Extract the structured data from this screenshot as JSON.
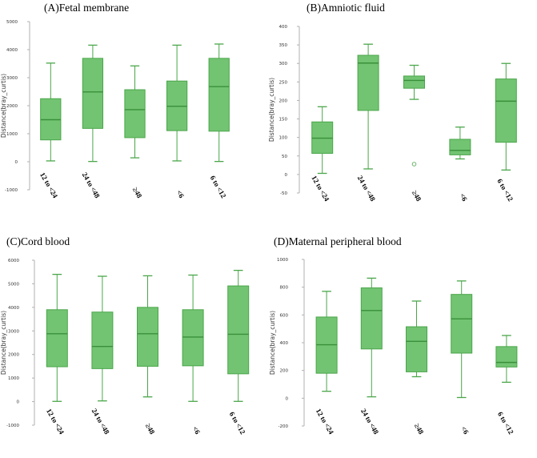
{
  "colors": {
    "box_fill": "#72c472",
    "box_stroke": "#4aa64a",
    "axis": "#b0b0b0",
    "outlier": "#5aab5a"
  },
  "chart_data": [
    {
      "type": "box",
      "title": "(A)Fetal membrane",
      "ylabel": "Distance(bray_curtis)",
      "xlabel": "",
      "ylim": [
        -1000,
        5000
      ],
      "yticks": [
        -1000,
        0,
        1000,
        2000,
        3000,
        4000,
        5000
      ],
      "categories": [
        "12 to <24",
        "24 to <48",
        "≥48",
        "<6",
        "6 to <12"
      ],
      "boxes": [
        {
          "min": 30,
          "q1": 780,
          "median": 1500,
          "q3": 2250,
          "max": 3520
        },
        {
          "min": 10,
          "q1": 1190,
          "median": 2490,
          "q3": 3690,
          "max": 4160
        },
        {
          "min": 140,
          "q1": 860,
          "median": 1860,
          "q3": 2570,
          "max": 3420
        },
        {
          "min": 30,
          "q1": 1110,
          "median": 1980,
          "q3": 2880,
          "max": 4160
        },
        {
          "min": 10,
          "q1": 1090,
          "median": 2680,
          "q3": 3690,
          "max": 4200
        }
      ],
      "outliers": [
        [],
        [],
        [],
        [],
        []
      ]
    },
    {
      "type": "box",
      "title": "(B)Amniotic fluid",
      "ylabel": "Distance(bray_curtis)",
      "xlabel": "",
      "ylim": [
        -50,
        400
      ],
      "yticks": [
        -50,
        0,
        50,
        100,
        150,
        200,
        250,
        300,
        350,
        400
      ],
      "categories": [
        "12 to <24",
        "24 to <48",
        "≥48",
        "<6",
        "6 to <12"
      ],
      "boxes": [
        {
          "min": 3,
          "q1": 57,
          "median": 98,
          "q3": 142,
          "max": 183
        },
        {
          "min": 15,
          "q1": 173,
          "median": 301,
          "q3": 322,
          "max": 352
        },
        {
          "min": 203,
          "q1": 233,
          "median": 254,
          "q3": 266,
          "max": 295
        },
        {
          "min": 42,
          "q1": 53,
          "median": 65,
          "q3": 95,
          "max": 128
        },
        {
          "min": 12,
          "q1": 87,
          "median": 198,
          "q3": 258,
          "max": 300
        }
      ],
      "outliers": [
        [],
        [],
        [
          28
        ],
        [],
        []
      ]
    },
    {
      "type": "box",
      "title": "(C)Cord blood",
      "ylabel": "Distance(bray_curtis)",
      "xlabel": "",
      "ylim": [
        -1000,
        6000
      ],
      "yticks": [
        -1000,
        0,
        1000,
        2000,
        3000,
        4000,
        5000,
        6000
      ],
      "categories": [
        "12 to <24",
        "24 to <48",
        "≥48",
        "<6",
        "6 to <12"
      ],
      "boxes": [
        {
          "min": 10,
          "q1": 1480,
          "median": 2880,
          "q3": 3900,
          "max": 5400
        },
        {
          "min": 30,
          "q1": 1400,
          "median": 2340,
          "q3": 3800,
          "max": 5320
        },
        {
          "min": 200,
          "q1": 1500,
          "median": 2880,
          "q3": 4000,
          "max": 5340
        },
        {
          "min": 10,
          "q1": 1520,
          "median": 2740,
          "q3": 3900,
          "max": 5370
        },
        {
          "min": 10,
          "q1": 1180,
          "median": 2860,
          "q3": 4910,
          "max": 5570
        }
      ],
      "outliers": [
        [],
        [],
        [],
        [],
        []
      ]
    },
    {
      "type": "box",
      "title": "(D)Maternal peripheral blood",
      "ylabel": "Distance(bray_curtis)",
      "xlabel": "",
      "ylim": [
        -200,
        1000
      ],
      "yticks": [
        -200,
        0,
        200,
        400,
        600,
        800,
        1000
      ],
      "categories": [
        "12 to <24",
        "24 to <48",
        "≥48",
        "<6",
        "6 to <12"
      ],
      "boxes": [
        {
          "min": 50,
          "q1": 180,
          "median": 385,
          "q3": 585,
          "max": 770
        },
        {
          "min": 10,
          "q1": 355,
          "median": 632,
          "q3": 795,
          "max": 865
        },
        {
          "min": 155,
          "q1": 190,
          "median": 410,
          "q3": 515,
          "max": 700
        },
        {
          "min": 5,
          "q1": 325,
          "median": 572,
          "q3": 748,
          "max": 845
        },
        {
          "min": 115,
          "q1": 225,
          "median": 258,
          "q3": 372,
          "max": 452
        }
      ],
      "outliers": [
        [],
        [],
        [],
        [],
        []
      ]
    }
  ]
}
